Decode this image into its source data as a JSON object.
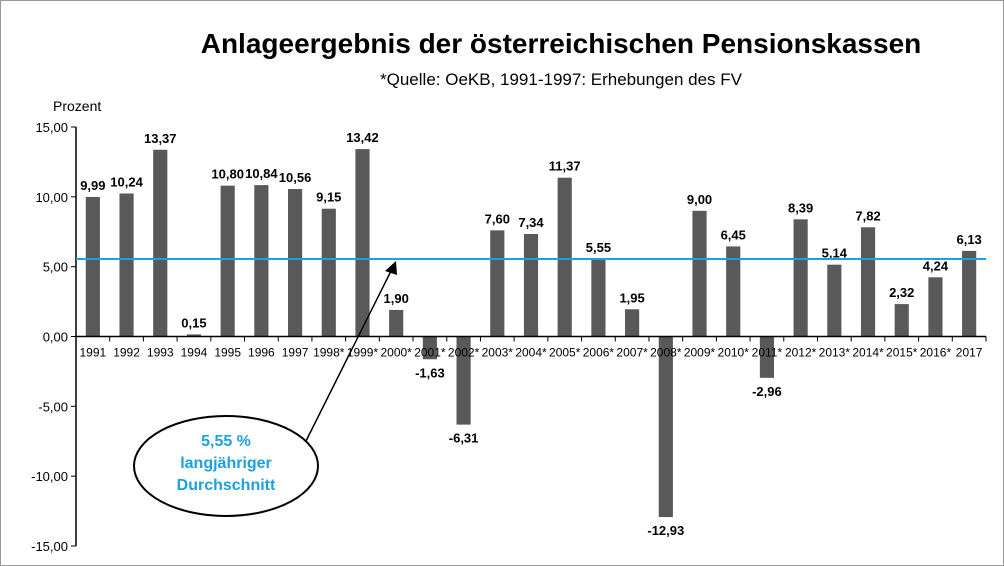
{
  "chart_data": {
    "type": "bar",
    "title": "Anlageergebnis der österreichischen Pensionskassen",
    "subtitle": "*Quelle: OeKB, 1991-1997: Erhebungen des FV",
    "ylabel": "Prozent",
    "xlabel": "",
    "ylim": [
      -15,
      15
    ],
    "yticks": [
      "15,00",
      "10,00",
      "5,00",
      "0,00",
      "-5,00",
      "-10,00",
      "-15,00"
    ],
    "categories": [
      "1991",
      "1992",
      "1993",
      "1994",
      "1995",
      "1996",
      "1997",
      "1998*",
      "1999*",
      "2000*",
      "2001*",
      "2002*",
      "2003*",
      "2004*",
      "2005*",
      "2006*",
      "2007*",
      "2008*",
      "2009*",
      "2010*",
      "2011*",
      "2012*",
      "2013*",
      "2014*",
      "2015*",
      "2016*",
      "2017"
    ],
    "values": [
      9.99,
      10.24,
      13.37,
      0.15,
      10.8,
      10.84,
      10.56,
      9.15,
      13.42,
      1.9,
      -1.63,
      -6.31,
      7.6,
      7.34,
      11.37,
      5.55,
      1.95,
      -12.93,
      9.0,
      6.45,
      -2.96,
      8.39,
      5.14,
      7.82,
      2.32,
      4.24,
      6.13
    ],
    "labels": [
      "9,99",
      "10,24",
      "13,37",
      "0,15",
      "10,80",
      "10,84",
      "10,56",
      "9,15",
      "13,42",
      "1,90",
      "-1,63",
      "-6,31",
      "7,60",
      "7,34",
      "11,37",
      "5,55",
      "1,95",
      "-12,93",
      "9,00",
      "6,45",
      "-2,96",
      "8,39",
      "5,14",
      "7,82",
      "2,32",
      "4,24",
      "6,13"
    ],
    "average": 5.55,
    "annotation": [
      "5,55 %",
      "langjähriger",
      "Durchschnitt"
    ],
    "grid": false,
    "colors": {
      "bar": "#595959",
      "average": "#1ba1e2"
    }
  }
}
